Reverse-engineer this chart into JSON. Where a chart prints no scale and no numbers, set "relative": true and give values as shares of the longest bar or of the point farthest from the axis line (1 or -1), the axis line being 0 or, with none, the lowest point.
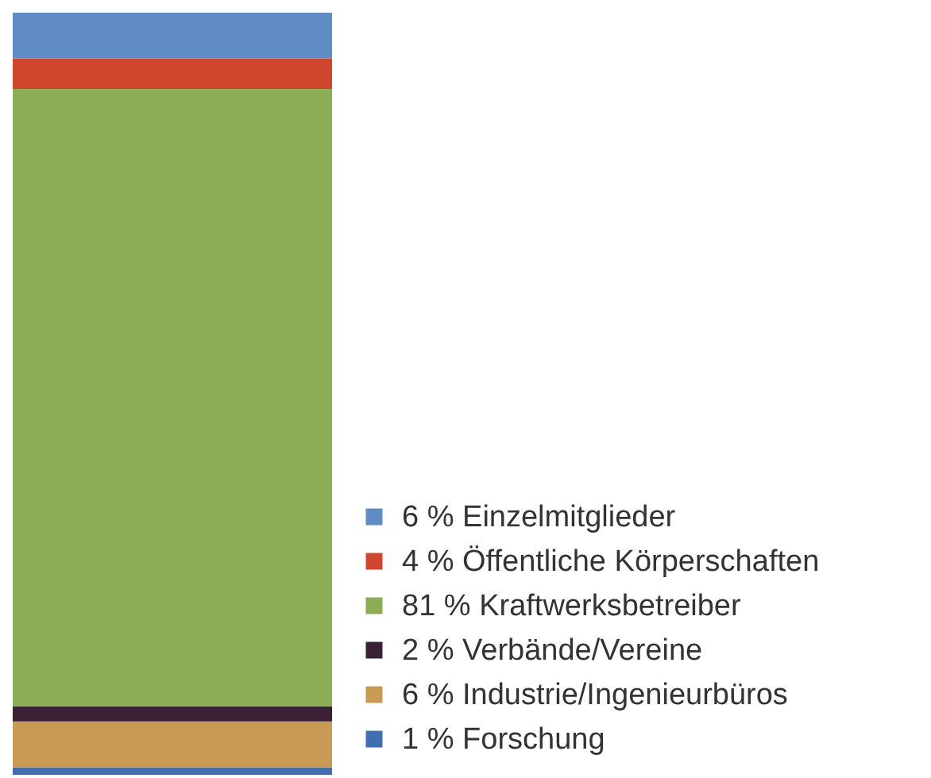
{
  "chart_data": {
    "type": "bar",
    "stacked": true,
    "relative": true,
    "categories": [
      null
    ],
    "legend": "bottom right",
    "series": [
      {
        "name": "1 % Forschung",
        "color": "#3f6fb0",
        "values": [
          0.01
        ]
      },
      {
        "name": "6 % Industrie/Ingenieurbüros",
        "color": "#c89a55",
        "values": [
          0.06
        ]
      },
      {
        "name": "2 % Verbände/Vereine",
        "color": "#3a2136",
        "values": [
          0.02
        ]
      },
      {
        "name": "81 % Kraftwerksbetreiber",
        "color": "#8cac55",
        "values": [
          0.81
        ]
      },
      {
        "name": "4 % Öffentliche Körperschaften",
        "color": "#d0452e",
        "values": [
          0.04
        ]
      },
      {
        "name": "6 % Einzelmitglieder",
        "color": "#5f8cc4",
        "values": [
          0.06
        ]
      }
    ]
  }
}
